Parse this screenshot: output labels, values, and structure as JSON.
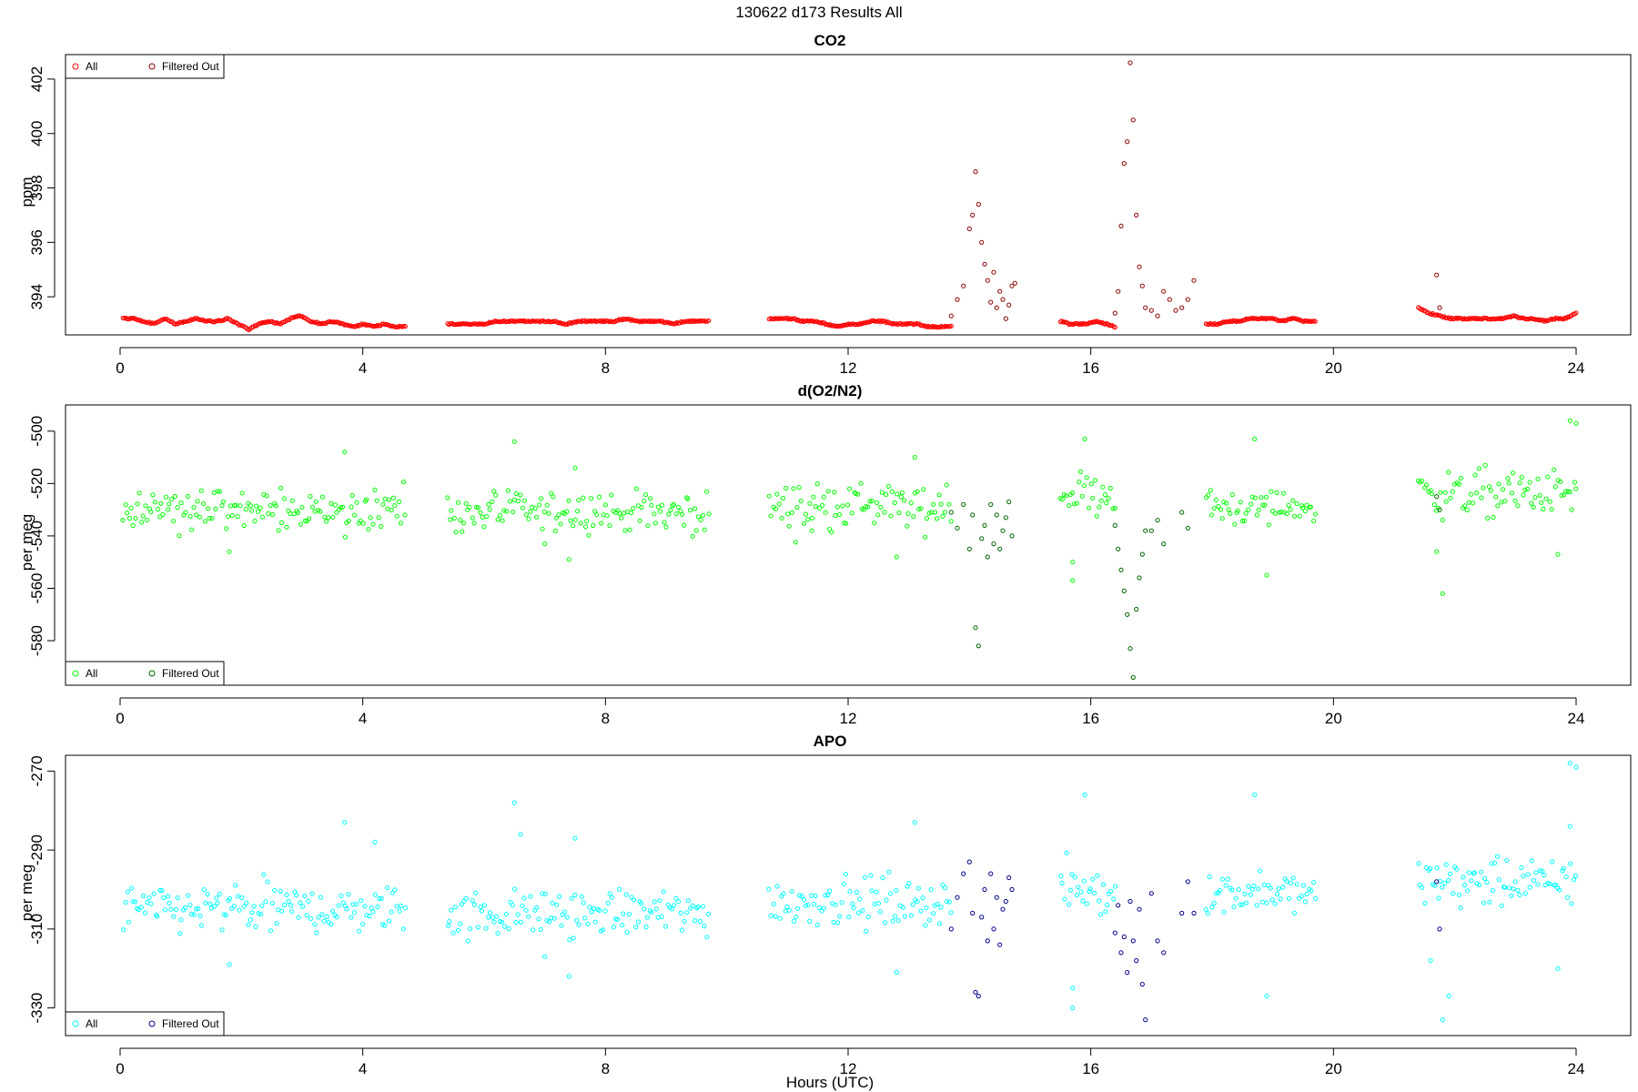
{
  "page": {
    "main_title": "130622   d173   Results All",
    "xlabel": "Hours (UTC)"
  },
  "colors": {
    "co2_all": "#ff0000",
    "co2_filtered": "#8b0000",
    "o2_all": "#00ff00",
    "o2_filtered": "#006400",
    "apo_all": "#00ffff",
    "apo_filtered": "#00008b",
    "axis": "#000000",
    "background": "#ffffff"
  },
  "chart_data": [
    {
      "type": "scatter",
      "title": "CO2",
      "xlabel": "",
      "ylabel": "ppm",
      "xlim": [
        -0.9,
        24.9
      ],
      "ylim": [
        392.6,
        402.9
      ],
      "xticks": [
        0,
        4,
        8,
        12,
        16,
        20,
        24
      ],
      "yticks": [
        394,
        396,
        398,
        400,
        402
      ],
      "grid": false,
      "legend": {
        "position": "top-left",
        "entries": [
          {
            "label": "All",
            "color": "#ff0000"
          },
          {
            "label": "Filtered Out",
            "color": "#8b0000"
          }
        ]
      },
      "series": [
        {
          "name": "All",
          "color": "#ff0000",
          "segments": [
            {
              "x_range": [
                0.05,
                4.7
              ],
              "values": [
                393.2,
                393.2,
                393.1,
                393.0,
                393.2,
                393.0,
                393.1,
                393.2,
                393.1,
                393.1,
                393.2,
                393.0,
                392.8,
                393.0,
                393.1,
                393.0,
                393.2,
                393.3,
                393.1,
                393.0,
                393.1,
                393.0,
                392.9,
                393.0,
                392.9,
                393.0,
                392.9,
                392.9
              ]
            },
            {
              "x_range": [
                5.4,
                9.7
              ],
              "values": [
                393.0,
                393.0,
                393.0,
                393.0,
                393.1,
                393.1,
                393.1,
                393.1,
                393.1,
                393.1,
                393.0,
                393.1,
                393.1,
                393.1,
                393.1,
                393.2,
                393.1,
                393.1,
                393.1,
                393.0,
                393.1,
                393.1,
                393.1
              ]
            },
            {
              "x_range": [
                10.7,
                13.7
              ],
              "values": [
                393.2,
                393.2,
                393.2,
                393.1,
                393.1,
                393.0,
                392.9,
                393.0,
                393.0,
                393.1,
                393.1,
                393.0,
                393.0,
                393.0,
                392.9,
                392.9,
                392.9
              ]
            },
            {
              "x_range": [
                15.5,
                16.4
              ],
              "values": [
                393.1,
                393.0,
                393.0,
                393.0,
                393.1,
                393.0,
                392.9
              ]
            },
            {
              "x_range": [
                17.9,
                19.7
              ],
              "values": [
                393.0,
                393.0,
                393.1,
                393.1,
                393.2,
                393.2,
                393.2,
                393.1,
                393.2,
                393.1,
                393.1
              ]
            },
            {
              "x_range": [
                21.4,
                24.0
              ],
              "values": [
                393.6,
                393.4,
                393.3,
                393.2,
                393.2,
                393.2,
                393.2,
                393.2,
                393.2,
                393.3,
                393.2,
                393.2,
                393.1,
                393.2,
                393.2,
                393.4
              ]
            }
          ]
        },
        {
          "name": "Filtered Out",
          "color": "#8b0000",
          "points": [
            [
              13.7,
              393.3
            ],
            [
              13.8,
              393.9
            ],
            [
              13.9,
              394.4
            ],
            [
              14.0,
              396.5
            ],
            [
              14.05,
              397.0
            ],
            [
              14.1,
              398.6
            ],
            [
              14.15,
              397.4
            ],
            [
              14.2,
              396.0
            ],
            [
              14.25,
              395.2
            ],
            [
              14.3,
              394.6
            ],
            [
              14.35,
              393.8
            ],
            [
              14.4,
              394.9
            ],
            [
              14.45,
              393.6
            ],
            [
              14.5,
              394.2
            ],
            [
              14.55,
              393.9
            ],
            [
              14.6,
              393.2
            ],
            [
              14.65,
              393.7
            ],
            [
              14.7,
              394.4
            ],
            [
              14.75,
              394.5
            ],
            [
              16.4,
              393.4
            ],
            [
              16.45,
              394.2
            ],
            [
              16.5,
              396.6
            ],
            [
              16.55,
              398.9
            ],
            [
              16.6,
              399.7
            ],
            [
              16.65,
              402.6
            ],
            [
              16.7,
              400.5
            ],
            [
              16.75,
              397.0
            ],
            [
              16.8,
              395.1
            ],
            [
              16.85,
              394.4
            ],
            [
              16.9,
              393.6
            ],
            [
              17.0,
              393.5
            ],
            [
              17.1,
              393.3
            ],
            [
              17.2,
              394.2
            ],
            [
              17.3,
              393.9
            ],
            [
              17.4,
              393.5
            ],
            [
              17.5,
              393.6
            ],
            [
              17.6,
              393.9
            ],
            [
              17.7,
              394.6
            ],
            [
              21.7,
              394.8
            ],
            [
              21.75,
              393.6
            ]
          ]
        }
      ]
    },
    {
      "type": "scatter",
      "title": "d(O2/N2)",
      "xlabel": "",
      "ylabel": "per meg",
      "xlim": [
        -0.9,
        24.9
      ],
      "ylim": [
        -597,
        -490
      ],
      "xticks": [
        0,
        4,
        8,
        12,
        16,
        20,
        24
      ],
      "yticks": [
        -580,
        -560,
        -540,
        -520,
        -500
      ],
      "grid": false,
      "legend": {
        "position": "bottom-left",
        "entries": [
          {
            "label": "All",
            "color": "#00ff00"
          },
          {
            "label": "Filtered Out",
            "color": "#006400"
          }
        ]
      },
      "series": [
        {
          "name": "All",
          "color": "#00ff00",
          "segments": [
            {
              "x_range": [
                0.05,
                4.7
              ],
              "center": -530,
              "spread": 8
            },
            {
              "x_range": [
                5.4,
                9.7
              ],
              "center": -531,
              "spread": 8
            },
            {
              "x_range": [
                10.7,
                13.7
              ],
              "center": -529,
              "spread": 9
            },
            {
              "x_range": [
                15.5,
                16.4
              ],
              "center": -524,
              "spread": 9
            },
            {
              "x_range": [
                17.9,
                19.7
              ],
              "center": -529,
              "spread": 7
            },
            {
              "x_range": [
                21.4,
                24.0
              ],
              "center": -524,
              "spread": 9
            }
          ],
          "outliers": [
            [
              1.8,
              -546
            ],
            [
              3.7,
              -508
            ],
            [
              6.5,
              -504
            ],
            [
              7.0,
              -543
            ],
            [
              7.4,
              -549
            ],
            [
              7.5,
              -514
            ],
            [
              11.4,
              -538
            ],
            [
              12.8,
              -548
            ],
            [
              13.1,
              -510
            ],
            [
              15.7,
              -557
            ],
            [
              15.7,
              -550
            ],
            [
              15.9,
              -503
            ],
            [
              18.7,
              -503
            ],
            [
              18.9,
              -555
            ],
            [
              21.7,
              -546
            ],
            [
              21.8,
              -562
            ],
            [
              23.9,
              -496
            ],
            [
              24.0,
              -497
            ],
            [
              23.7,
              -547
            ]
          ]
        },
        {
          "name": "Filtered Out",
          "color": "#006400",
          "points": [
            [
              13.7,
              -531
            ],
            [
              13.8,
              -537
            ],
            [
              13.9,
              -528
            ],
            [
              14.0,
              -545
            ],
            [
              14.05,
              -532
            ],
            [
              14.1,
              -575
            ],
            [
              14.15,
              -582
            ],
            [
              14.2,
              -541
            ],
            [
              14.25,
              -536
            ],
            [
              14.3,
              -548
            ],
            [
              14.35,
              -528
            ],
            [
              14.4,
              -543
            ],
            [
              14.45,
              -532
            ],
            [
              14.5,
              -545
            ],
            [
              14.55,
              -538
            ],
            [
              14.6,
              -533
            ],
            [
              14.65,
              -527
            ],
            [
              14.7,
              -540
            ],
            [
              16.4,
              -536
            ],
            [
              16.45,
              -545
            ],
            [
              16.5,
              -553
            ],
            [
              16.55,
              -561
            ],
            [
              16.6,
              -570
            ],
            [
              16.65,
              -583
            ],
            [
              16.7,
              -594
            ],
            [
              16.75,
              -568
            ],
            [
              16.8,
              -556
            ],
            [
              16.85,
              -547
            ],
            [
              16.9,
              -538
            ],
            [
              17.0,
              -538
            ],
            [
              17.1,
              -534
            ],
            [
              17.2,
              -543
            ],
            [
              17.5,
              -531
            ],
            [
              17.6,
              -537
            ],
            [
              21.7,
              -525
            ],
            [
              21.75,
              -530
            ]
          ]
        }
      ]
    },
    {
      "type": "scatter",
      "title": "APO",
      "xlabel": "Hours (UTC)",
      "ylabel": "per meg",
      "xlim": [
        -0.9,
        24.9
      ],
      "ylim": [
        -337,
        -266
      ],
      "xticks": [
        0,
        4,
        8,
        12,
        16,
        20,
        24
      ],
      "yticks": [
        -330,
        -310,
        -290,
        -270
      ],
      "grid": false,
      "legend": {
        "position": "bottom-left",
        "entries": [
          {
            "label": "All",
            "color": "#00ffff"
          },
          {
            "label": "Filtered Out",
            "color": "#00008b"
          }
        ]
      },
      "series": [
        {
          "name": "All",
          "color": "#00ffff",
          "segments": [
            {
              "x_range": [
                0.05,
                4.7
              ],
              "center": -305,
              "spread": 6
            },
            {
              "x_range": [
                5.4,
                9.7
              ],
              "center": -306,
              "spread": 6
            },
            {
              "x_range": [
                10.7,
                13.7
              ],
              "center": -303,
              "spread": 6
            },
            {
              "x_range": [
                15.5,
                16.4
              ],
              "center": -300,
              "spread": 7
            },
            {
              "x_range": [
                17.9,
                19.7
              ],
              "center": -301,
              "spread": 5
            },
            {
              "x_range": [
                21.4,
                24.0
              ],
              "center": -298,
              "spread": 6
            }
          ],
          "outliers": [
            [
              1.8,
              -319
            ],
            [
              3.7,
              -283
            ],
            [
              4.2,
              -288
            ],
            [
              6.5,
              -278
            ],
            [
              6.6,
              -286
            ],
            [
              7.0,
              -317
            ],
            [
              7.4,
              -322
            ],
            [
              7.5,
              -287
            ],
            [
              12.8,
              -321
            ],
            [
              13.1,
              -283
            ],
            [
              15.7,
              -325
            ],
            [
              15.7,
              -330
            ],
            [
              15.9,
              -276
            ],
            [
              18.7,
              -276
            ],
            [
              18.9,
              -327
            ],
            [
              21.6,
              -318
            ],
            [
              21.8,
              -333
            ],
            [
              21.9,
              -327
            ],
            [
              23.9,
              -268
            ],
            [
              24.0,
              -269
            ],
            [
              23.7,
              -320
            ],
            [
              23.9,
              -284
            ]
          ]
        },
        {
          "name": "Filtered Out",
          "color": "#00008b",
          "points": [
            [
              13.7,
              -310
            ],
            [
              13.8,
              -302
            ],
            [
              13.9,
              -296
            ],
            [
              14.0,
              -293
            ],
            [
              14.05,
              -306
            ],
            [
              14.1,
              -326
            ],
            [
              14.15,
              -327
            ],
            [
              14.2,
              -307
            ],
            [
              14.25,
              -300
            ],
            [
              14.3,
              -313
            ],
            [
              14.35,
              -296
            ],
            [
              14.4,
              -310
            ],
            [
              14.45,
              -302
            ],
            [
              14.5,
              -314
            ],
            [
              14.55,
              -305
            ],
            [
              14.6,
              -303
            ],
            [
              14.65,
              -297
            ],
            [
              14.7,
              -300
            ],
            [
              16.4,
              -311
            ],
            [
              16.45,
              -304
            ],
            [
              16.5,
              -316
            ],
            [
              16.55,
              -312
            ],
            [
              16.6,
              -321
            ],
            [
              16.65,
              -303
            ],
            [
              16.7,
              -313
            ],
            [
              16.75,
              -318
            ],
            [
              16.8,
              -305
            ],
            [
              16.85,
              -324
            ],
            [
              16.9,
              -333
            ],
            [
              17.0,
              -301
            ],
            [
              17.1,
              -313
            ],
            [
              17.2,
              -316
            ],
            [
              17.5,
              -306
            ],
            [
              17.6,
              -298
            ],
            [
              17.7,
              -306
            ],
            [
              21.7,
              -298
            ],
            [
              21.75,
              -310
            ]
          ]
        }
      ]
    }
  ]
}
